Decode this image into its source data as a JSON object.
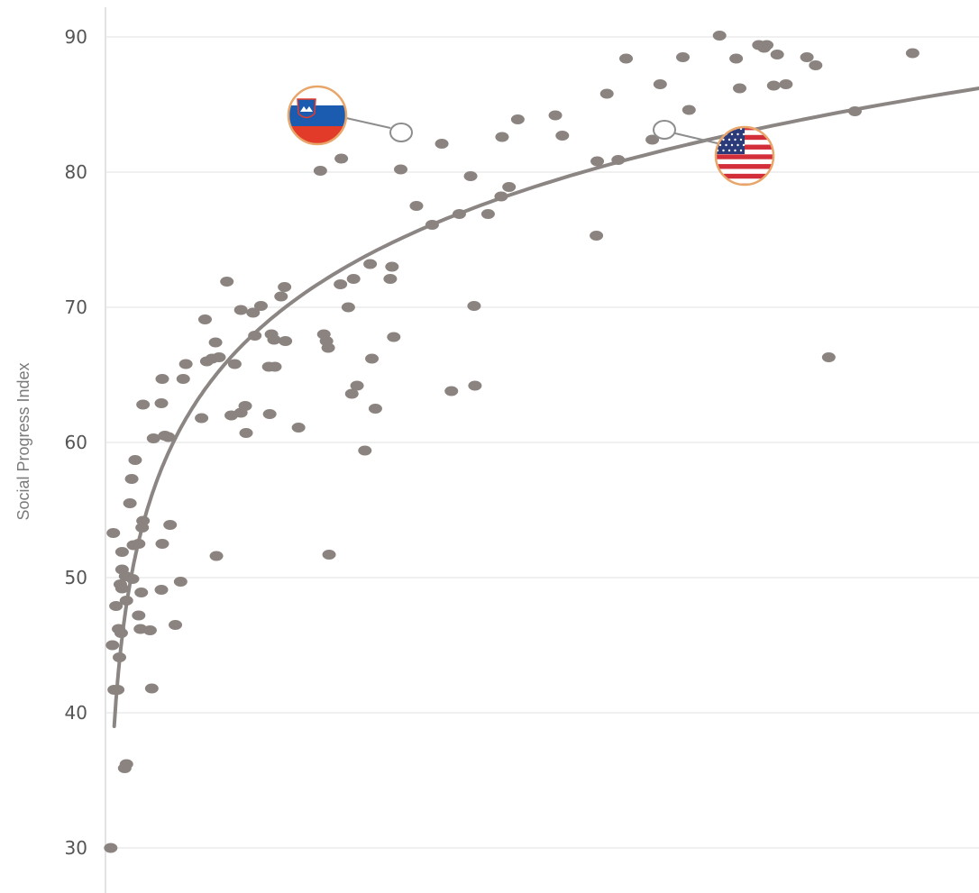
{
  "chart_data": {
    "type": "scatter",
    "title": "",
    "xlabel": "",
    "ylabel": "Social Progress Index",
    "ylim": [
      28,
      93
    ],
    "xlim": [
      0,
      100
    ],
    "grid": true,
    "y_ticks": [
      "30",
      "40",
      "50",
      "60",
      "70",
      "80",
      "90"
    ],
    "trend": {
      "kind": "logarithmic",
      "x": [
        1,
        100
      ],
      "y_start": 39,
      "y_end": 86.2
    },
    "series": [
      {
        "points": [
          [
            0.6,
            30
          ],
          [
            1,
            41.7
          ],
          [
            1.4,
            41.7
          ],
          [
            0.8,
            45
          ],
          [
            1.6,
            44.1
          ],
          [
            1.8,
            45.9
          ],
          [
            1.5,
            46.2
          ],
          [
            1.9,
            49.2
          ],
          [
            1.7,
            49.5
          ],
          [
            1.2,
            47.9
          ],
          [
            2.4,
            48.3
          ],
          [
            1.9,
            50.6
          ],
          [
            2.3,
            50.1
          ],
          [
            3.1,
            49.9
          ],
          [
            1.9,
            51.9
          ],
          [
            3.2,
            52.4
          ],
          [
            3.8,
            52.5
          ],
          [
            0.9,
            53.3
          ],
          [
            4.2,
            53.7
          ],
          [
            4.3,
            54.2
          ],
          [
            2.8,
            55.5
          ],
          [
            3.0,
            57.3
          ],
          [
            3.4,
            58.7
          ],
          [
            2.4,
            36.2
          ],
          [
            2.2,
            35.9
          ],
          [
            3.8,
            47.2
          ],
          [
            4.0,
            46.2
          ],
          [
            5.1,
            46.1
          ],
          [
            4.1,
            48.9
          ],
          [
            5.3,
            41.8
          ],
          [
            6.4,
            49.1
          ],
          [
            8.0,
            46.5
          ],
          [
            8.6,
            49.7
          ],
          [
            6.5,
            52.5
          ],
          [
            7.4,
            53.9
          ],
          [
            5.5,
            60.3
          ],
          [
            6.8,
            60.5
          ],
          [
            7.2,
            60.4
          ],
          [
            4.3,
            62.8
          ],
          [
            6.4,
            62.9
          ],
          [
            6.5,
            64.7
          ],
          [
            8.9,
            64.7
          ],
          [
            9.2,
            65.8
          ],
          [
            11.0,
            61.8
          ],
          [
            11.6,
            66
          ],
          [
            12.2,
            66.2
          ],
          [
            13,
            66.3
          ],
          [
            11.4,
            69.1
          ],
          [
            12.6,
            67.4
          ],
          [
            13.9,
            71.9
          ],
          [
            14.8,
            65.8
          ],
          [
            14.4,
            62
          ],
          [
            15.5,
            62.2
          ],
          [
            16.0,
            62.7
          ],
          [
            16.1,
            60.7
          ],
          [
            15.5,
            69.8
          ],
          [
            16.9,
            69.6
          ],
          [
            17.8,
            70.1
          ],
          [
            17.1,
            67.9
          ],
          [
            18.7,
            65.6
          ],
          [
            19.4,
            65.6
          ],
          [
            19.3,
            67.6
          ],
          [
            20.1,
            70.8
          ],
          [
            20.5,
            71.5
          ],
          [
            19.0,
            68.0
          ],
          [
            20.6,
            67.5
          ],
          [
            18.8,
            62.1
          ],
          [
            22.1,
            61.1
          ],
          [
            24.6,
            80.1
          ],
          [
            25,
            68
          ],
          [
            25.3,
            67.5
          ],
          [
            25.5,
            67
          ],
          [
            25.6,
            51.7
          ],
          [
            26.9,
            71.7
          ],
          [
            28.4,
            72.1
          ],
          [
            27.8,
            70
          ],
          [
            28.2,
            63.6
          ],
          [
            28.8,
            64.2
          ],
          [
            30.3,
            73.2
          ],
          [
            30.5,
            66.2
          ],
          [
            30.9,
            62.5
          ],
          [
            29.7,
            59.4
          ],
          [
            12.7,
            51.6
          ],
          [
            27,
            81
          ],
          [
            32.8,
            73
          ],
          [
            33,
            67.8
          ],
          [
            32.6,
            72.1
          ],
          [
            33.8,
            80.2
          ],
          [
            35.6,
            77.5
          ],
          [
            37.4,
            76.1
          ],
          [
            38.5,
            82.1
          ],
          [
            40.5,
            76.9
          ],
          [
            39.6,
            63.8
          ],
          [
            42.2,
            70.1
          ],
          [
            42.3,
            64.2
          ],
          [
            41.8,
            79.7
          ],
          [
            43.8,
            76.9
          ],
          [
            45.3,
            78.2
          ],
          [
            45.4,
            82.6
          ],
          [
            46.2,
            78.9
          ],
          [
            47.2,
            83.9
          ],
          [
            51.5,
            84.2
          ],
          [
            52.3,
            82.7
          ],
          [
            56.3,
            80.8
          ],
          [
            56.2,
            75.3
          ],
          [
            57.4,
            85.8
          ],
          [
            58.7,
            80.9
          ],
          [
            59.6,
            88.4
          ],
          [
            62.6,
            82.4
          ],
          [
            63.5,
            86.5
          ],
          [
            66.1,
            88.5
          ],
          [
            66.8,
            84.6
          ],
          [
            70.3,
            90.1
          ],
          [
            72.2,
            88.4
          ],
          [
            72.6,
            86.2
          ],
          [
            74.8,
            89.4
          ],
          [
            75.4,
            89.2
          ],
          [
            75.7,
            89.4
          ],
          [
            76.5,
            86.4
          ],
          [
            76.9,
            88.7
          ],
          [
            77.9,
            86.5
          ],
          [
            80.3,
            88.5
          ],
          [
            81.3,
            87.9
          ],
          [
            82.8,
            66.3
          ],
          [
            85.8,
            84.5
          ],
          [
            92.4,
            88.8
          ]
        ]
      }
    ],
    "highlights": [
      {
        "flag": "slovenia-flag-icon",
        "x": 37.0,
        "y": 83.0
      },
      {
        "flag": "usa-flag-icon",
        "x": 68.3,
        "y": 83.2
      }
    ]
  }
}
